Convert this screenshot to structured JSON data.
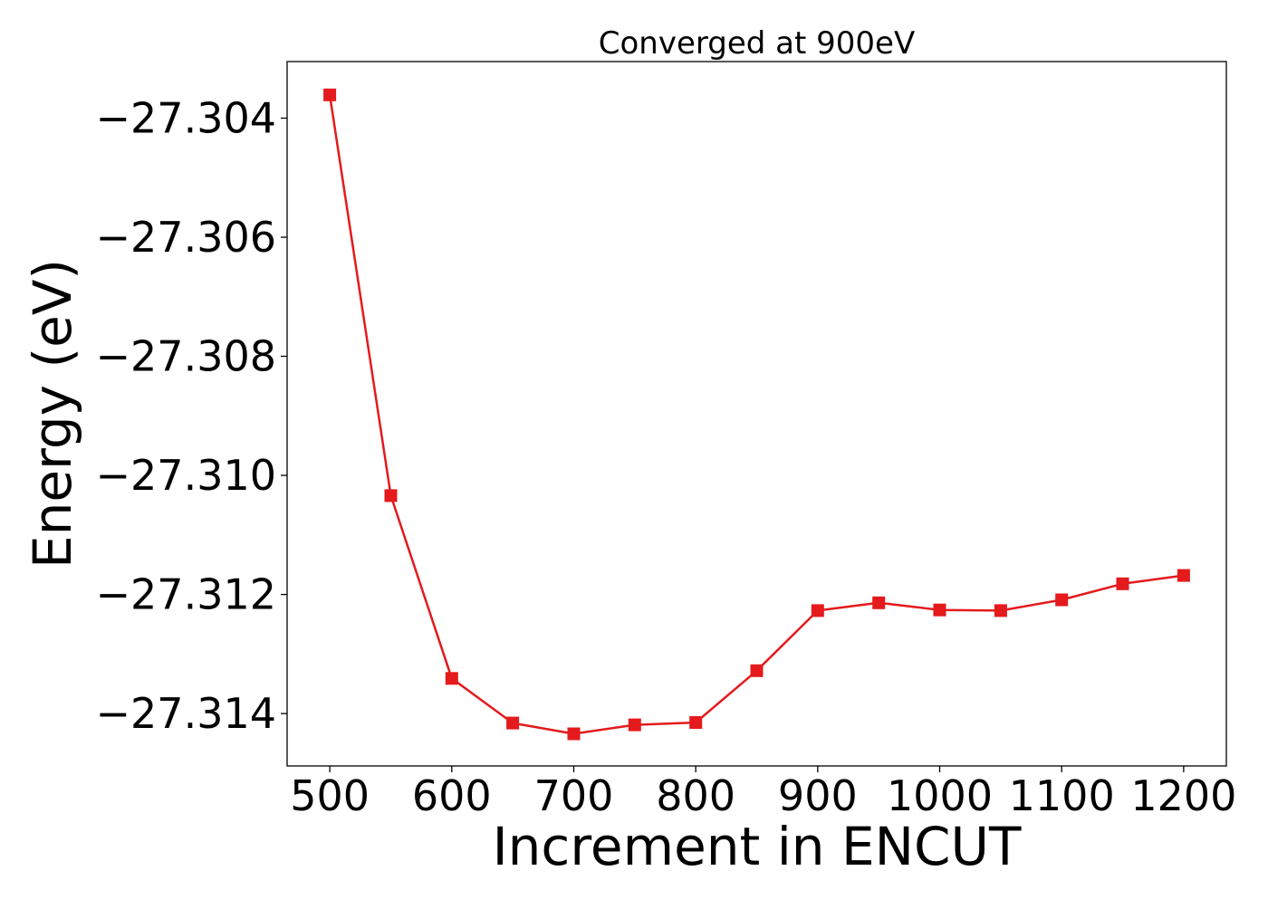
{
  "chart_data": {
    "type": "line",
    "title": "Converged at 900eV",
    "xlabel": "Increment in ENCUT",
    "ylabel": "Energy (eV)",
    "xlim": [
      465,
      1235
    ],
    "ylim": [
      -27.31488,
      -27.30305
    ],
    "xticks": [
      500,
      600,
      700,
      800,
      900,
      1000,
      1100,
      1200
    ],
    "xtick_labels": [
      "500",
      "600",
      "700",
      "800",
      "900",
      "1000",
      "1100",
      "1200"
    ],
    "yticks": [
      -27.304,
      -27.306,
      -27.308,
      -27.31,
      -27.312,
      -27.314
    ],
    "ytick_labels": [
      "−27.304",
      "−27.306",
      "−27.308",
      "−27.310",
      "−27.312",
      "−27.314"
    ],
    "grid": false,
    "series": [
      {
        "color": "#e41a1c",
        "marker": "square",
        "x": [
          500,
          550,
          600,
          650,
          700,
          750,
          800,
          850,
          900,
          950,
          1000,
          1050,
          1100,
          1150,
          1200
        ],
        "values": [
          -27.30361,
          -27.31034,
          -27.31341,
          -27.31416,
          -27.31434,
          -27.31419,
          -27.31415,
          -27.31328,
          -27.31227,
          -27.31214,
          -27.31226,
          -27.31227,
          -27.31209,
          -27.31182,
          -27.31168
        ]
      }
    ]
  }
}
